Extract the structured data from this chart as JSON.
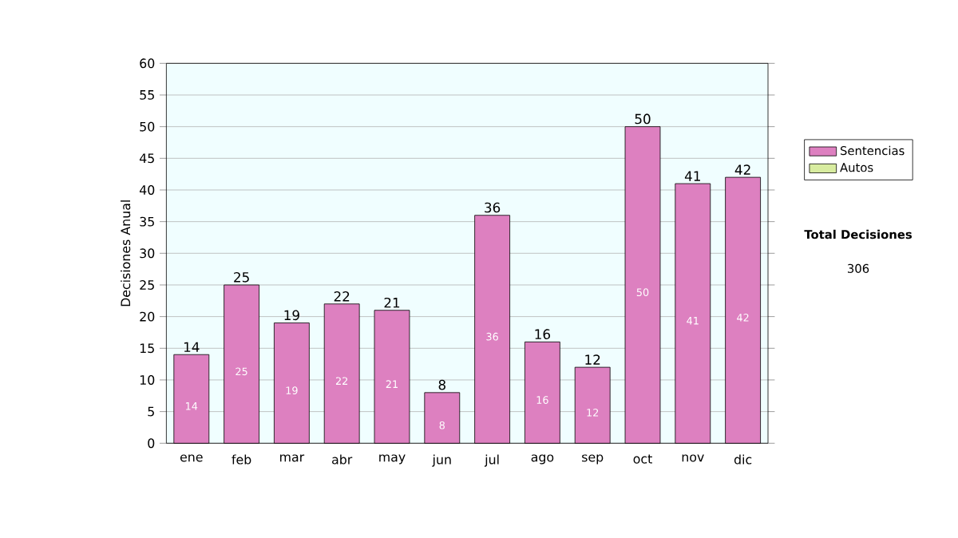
{
  "chart_data": {
    "type": "bar",
    "stacked": true,
    "ylabel": "Decisiones Anual",
    "categories": [
      "ene",
      "feb",
      "mar",
      "abr",
      "may",
      "jun",
      "jul",
      "ago",
      "sep",
      "oct",
      "nov",
      "dic"
    ],
    "series": [
      {
        "name": "Sentencias",
        "color": "#dd80c0",
        "values": [
          14,
          25,
          19,
          22,
          21,
          8,
          36,
          16,
          12,
          50,
          41,
          42
        ]
      },
      {
        "name": "Autos",
        "color": "#d8eca0",
        "values": [
          null,
          null,
          null,
          null,
          null,
          null,
          null,
          null,
          null,
          null,
          null,
          null
        ]
      }
    ],
    "totals": [
      "14",
      "25",
      "19",
      "22",
      "21",
      "8",
      "36",
      "16",
      "12",
      "50",
      "41",
      "42"
    ],
    "data_labels": true,
    "ylim": [
      0,
      60
    ],
    "yticks": [
      0,
      5,
      10,
      15,
      20,
      25,
      30,
      35,
      40,
      45,
      50,
      55,
      60
    ],
    "grid": "y",
    "legend": "right",
    "annotations": [
      "Total Decisiones",
      "306"
    ]
  }
}
